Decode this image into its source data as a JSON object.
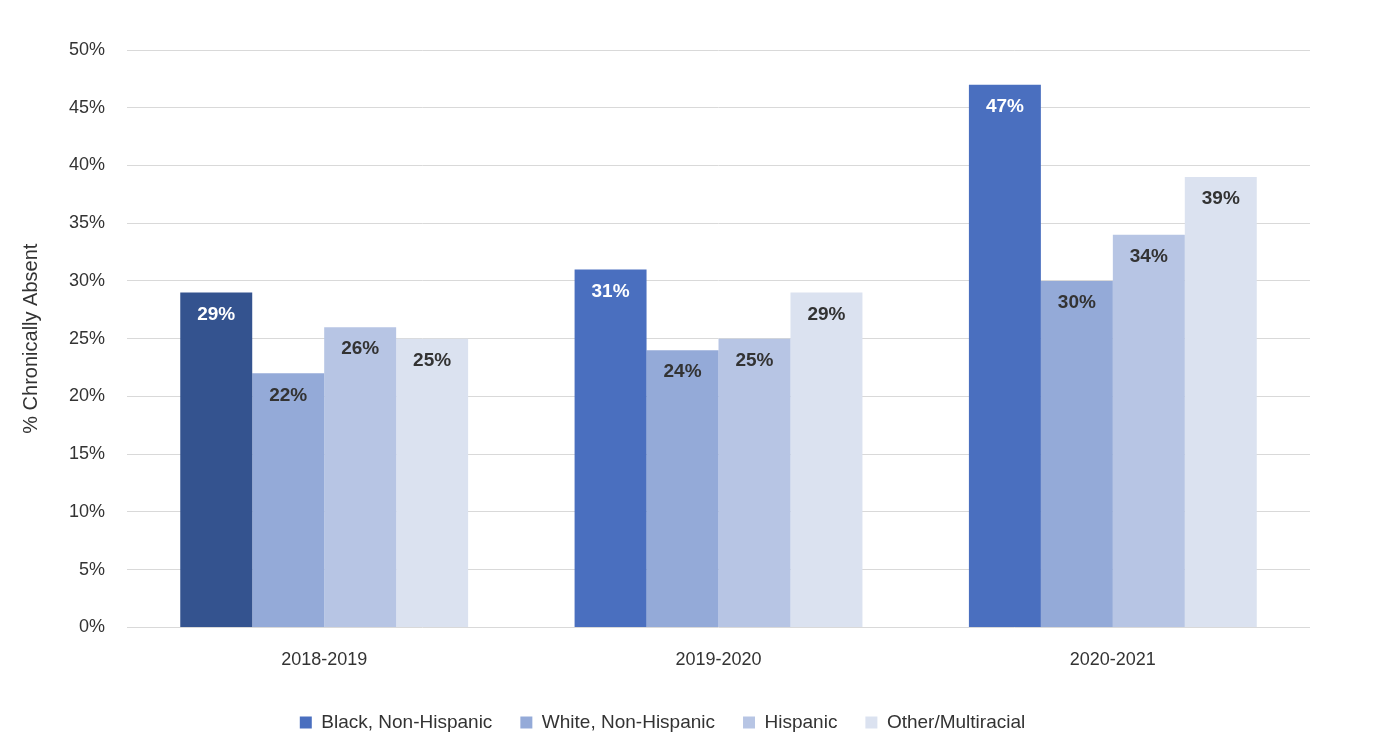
{
  "chart_data": {
    "type": "bar",
    "y_label": "% Chronically Absent",
    "categories": [
      "2018-2019",
      "2019-2020",
      "2020-2021"
    ],
    "series": [
      {
        "name": "Black, Non-Hispanic",
        "color": "#4a6fbf",
        "colors": [
          "#34538f",
          "#4a6fbf",
          "#4a6fbf"
        ],
        "values": [
          29,
          31,
          47
        ],
        "value_labels": [
          "29%",
          "31%",
          "47%"
        ]
      },
      {
        "name": "White, Non-Hispanic",
        "color": "#94aad8",
        "values": [
          22,
          24,
          30
        ],
        "value_labels": [
          "22%",
          "24%",
          "30%"
        ]
      },
      {
        "name": "Hispanic",
        "color": "#b7c5e4",
        "values": [
          26,
          25,
          34
        ],
        "value_labels": [
          "26%",
          "25%",
          "34%"
        ]
      },
      {
        "name": "Other/Multiracial",
        "color": "#dbe2f0",
        "values": [
          25,
          29,
          39
        ],
        "value_labels": [
          "25%",
          "29%",
          "39%"
        ]
      }
    ],
    "ylim": [
      0,
      50
    ],
    "yticks": [
      {
        "value": 0,
        "label": "0%"
      },
      {
        "value": 5,
        "label": "5%"
      },
      {
        "value": 10,
        "label": "10%"
      },
      {
        "value": 15,
        "label": "15%"
      },
      {
        "value": 20,
        "label": "20%"
      },
      {
        "value": 25,
        "label": "25%"
      },
      {
        "value": 30,
        "label": "30%"
      },
      {
        "value": 35,
        "label": "35%"
      },
      {
        "value": 40,
        "label": "40%"
      },
      {
        "value": 45,
        "label": "45%"
      },
      {
        "value": 50,
        "label": "50%"
      }
    ],
    "grid": true,
    "legend": "bottom",
    "data_labels": true
  }
}
